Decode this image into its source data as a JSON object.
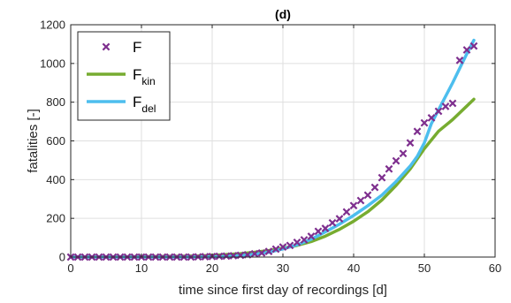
{
  "chart_data": {
    "type": "line",
    "title": "(d)",
    "xlabel": "time since first day of recordings [d]",
    "ylabel": "fatalities [-]",
    "xlim": [
      0,
      60
    ],
    "ylim": [
      0,
      1200
    ],
    "xticks": [
      0,
      10,
      20,
      30,
      40,
      50,
      60
    ],
    "yticks": [
      0,
      200,
      400,
      600,
      800,
      1000,
      1200
    ],
    "grid": true,
    "legend_position": "top-left",
    "series": [
      {
        "name": "F",
        "name_main": "F",
        "name_sub": "",
        "style": "markers-x",
        "color": "#7E2F8E",
        "x": [
          0,
          1,
          2,
          3,
          4,
          5,
          6,
          7,
          8,
          9,
          10,
          11,
          12,
          13,
          14,
          15,
          16,
          17,
          18,
          19,
          20,
          21,
          22,
          23,
          24,
          25,
          26,
          27,
          28,
          29,
          30,
          31,
          32,
          33,
          34,
          35,
          36,
          37,
          38,
          39,
          40,
          41,
          42,
          43,
          44,
          45,
          46,
          47,
          48,
          49,
          50,
          51,
          52,
          53,
          54,
          55,
          56,
          57
        ],
        "y": [
          0,
          0,
          0,
          0,
          0,
          0,
          0,
          0,
          0,
          0,
          0,
          0,
          0,
          0,
          0,
          0,
          0,
          0,
          1,
          2,
          3,
          4,
          5,
          7,
          9,
          12,
          17,
          21,
          29,
          41,
          52,
          60,
          76,
          89,
          107,
          133,
          148,
          177,
          198,
          233,
          266,
          292,
          320,
          360,
          410,
          455,
          497,
          535,
          590,
          649,
          693,
          719,
          753,
          778,
          794,
          1016,
          1070,
          1090
        ]
      },
      {
        "name": "Fkin",
        "name_main": "F",
        "name_sub": "kin",
        "style": "line",
        "color": "#77AC30",
        "x": [
          0,
          5,
          10,
          15,
          18,
          20,
          22,
          24,
          26,
          28,
          30,
          32,
          34,
          36,
          38,
          40,
          42,
          44,
          46,
          48,
          50,
          52,
          54,
          56,
          57
        ],
        "y": [
          0,
          1,
          2,
          4,
          6,
          9,
          13,
          18,
          25,
          34,
          46,
          60,
          80,
          108,
          143,
          185,
          234,
          295,
          370,
          455,
          560,
          650,
          710,
          780,
          815
        ]
      },
      {
        "name": "Fdel",
        "name_main": "F",
        "name_sub": "del",
        "style": "line",
        "color": "#4DBEEE",
        "x": [
          0,
          5,
          10,
          15,
          20,
          22,
          24,
          26,
          28,
          30,
          32,
          34,
          36,
          38,
          40,
          42,
          44,
          46,
          48,
          49,
          50,
          51,
          52,
          54,
          56,
          57
        ],
        "y": [
          0,
          0,
          0,
          0,
          1,
          3,
          7,
          14,
          25,
          42,
          63,
          92,
          130,
          170,
          215,
          265,
          320,
          390,
          470,
          520,
          590,
          690,
          760,
          900,
          1050,
          1120
        ]
      }
    ]
  }
}
